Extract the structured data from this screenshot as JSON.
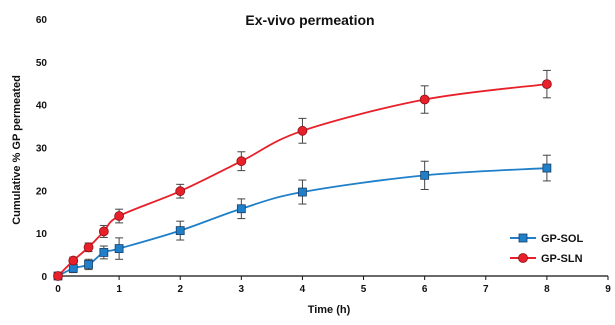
{
  "chart_data": {
    "type": "line",
    "title": "Ex-vivo permeation",
    "xlabel": "Time (h)",
    "ylabel": "Cumulative % GP permeated",
    "xlim": [
      0,
      9
    ],
    "ylim": [
      0,
      60
    ],
    "xticks": [
      0,
      1,
      2,
      3,
      4,
      5,
      6,
      7,
      8,
      9
    ],
    "yticks": [
      0,
      10,
      20,
      30,
      40,
      50,
      60
    ],
    "grid": false,
    "legend_position": "bottom-right",
    "series": [
      {
        "name": "GP-SOL",
        "color": "#1f7fc9",
        "marker": "square",
        "x": [
          0,
          0.25,
          0.5,
          0.75,
          1,
          2,
          3,
          4,
          6,
          8
        ],
        "y": [
          0,
          1.8,
          2.7,
          5.5,
          6.4,
          10.6,
          15.7,
          19.6,
          23.5,
          25.2
        ],
        "error": [
          0.5,
          1.0,
          1.2,
          1.5,
          2.5,
          2.2,
          2.3,
          2.8,
          3.3,
          3.0
        ]
      },
      {
        "name": "GP-SLN",
        "color": "#e8202a",
        "marker": "circle",
        "x": [
          0,
          0.25,
          0.5,
          0.75,
          1,
          2,
          3,
          4,
          6,
          8
        ],
        "y": [
          0,
          3.6,
          6.7,
          10.4,
          14.0,
          19.8,
          26.8,
          33.9,
          41.2,
          44.8
        ],
        "error": [
          0.5,
          0.8,
          1.0,
          1.4,
          1.6,
          1.6,
          2.2,
          2.9,
          3.2,
          3.2
        ]
      }
    ]
  }
}
